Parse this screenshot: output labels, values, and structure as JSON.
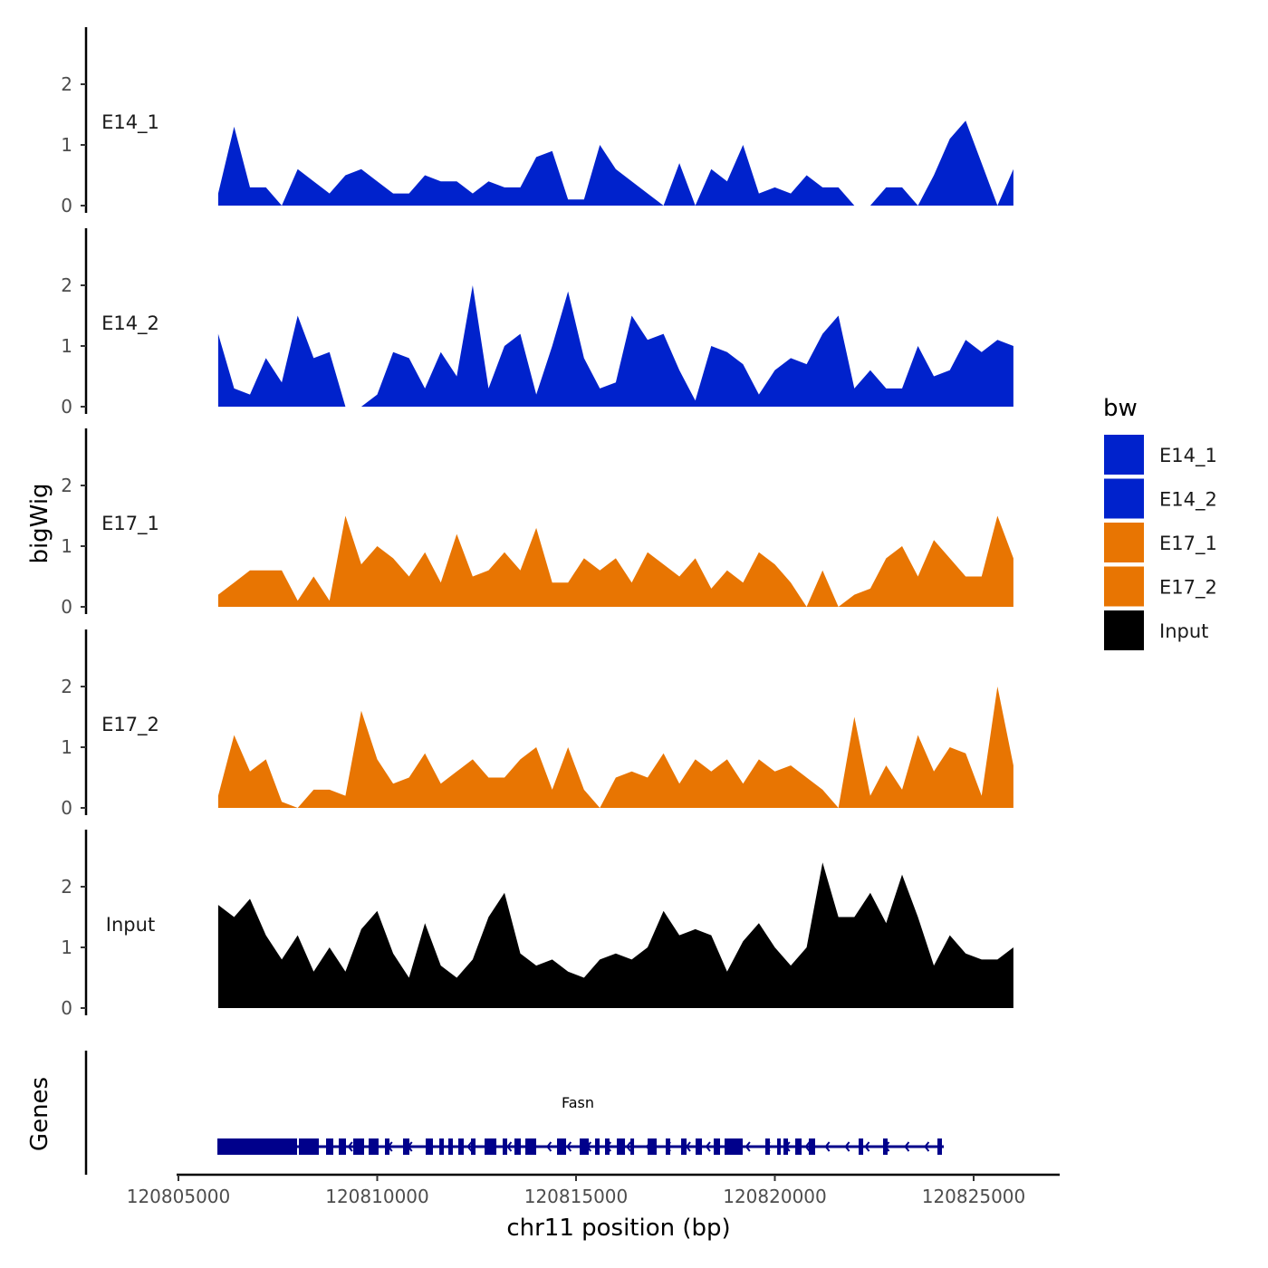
{
  "chart_data": {
    "type": "area",
    "xlabel": "chr11 position (bp)",
    "ylabel": "bigWig",
    "genes_label": "Genes",
    "x_ticks": [
      120805000,
      120810000,
      120815000,
      120820000,
      120825000
    ],
    "x_tick_labels": [
      "120805000",
      "120810000",
      "120815000",
      "120820000",
      "120825000"
    ],
    "xlim": [
      120805000,
      120827200
    ],
    "y_ticks": [
      0,
      1,
      2
    ],
    "y_tick_labels": [
      "0",
      "1",
      "2"
    ],
    "ylim": [
      0,
      2.9
    ],
    "x_start": 120806000,
    "x_step": 400,
    "legend": {
      "title": "bw",
      "position": "right",
      "entries": [
        "E14_1",
        "E14_2",
        "E17_1",
        "E17_2",
        "Input"
      ]
    },
    "series": [
      {
        "name": "E14_1",
        "color": "#0022CC",
        "values": [
          0.2,
          1.3,
          0.3,
          0.3,
          0,
          0.6,
          0.4,
          0.2,
          0.5,
          0.6,
          0.4,
          0.2,
          0.2,
          0.5,
          0.4,
          0.4,
          0.2,
          0.4,
          0.3,
          0.3,
          0.8,
          0.9,
          0.1,
          0.1,
          1.0,
          0.6,
          0.4,
          0.2,
          0,
          0.7,
          0,
          0.6,
          0.4,
          1.0,
          0.2,
          0.3,
          0.2,
          0.5,
          0.3,
          0.3,
          0,
          0,
          0.3,
          0.3,
          0,
          0.5,
          1.1,
          1.4,
          0.7,
          0,
          0.6
        ]
      },
      {
        "name": "E14_2",
        "color": "#0022CC",
        "values": [
          1.2,
          0.3,
          0.2,
          0.8,
          0.4,
          1.5,
          0.8,
          0.9,
          0,
          0,
          0.2,
          0.9,
          0.8,
          0.3,
          0.9,
          0.5,
          2.0,
          0.3,
          1.0,
          1.2,
          0.2,
          1.0,
          1.9,
          0.8,
          0.3,
          0.4,
          1.5,
          1.1,
          1.2,
          0.6,
          0.1,
          1.0,
          0.9,
          0.7,
          0.2,
          0.6,
          0.8,
          0.7,
          1.2,
          1.5,
          0.3,
          0.6,
          0.3,
          0.3,
          1.0,
          0.5,
          0.6,
          1.1,
          0.9,
          1.1,
          1.0
        ]
      },
      {
        "name": "E17_1",
        "color": "#E87502",
        "values": [
          0.2,
          0.4,
          0.6,
          0.6,
          0.6,
          0.1,
          0.5,
          0.1,
          1.5,
          0.7,
          1.0,
          0.8,
          0.5,
          0.9,
          0.4,
          1.2,
          0.5,
          0.6,
          0.9,
          0.6,
          1.3,
          0.4,
          0.4,
          0.8,
          0.6,
          0.8,
          0.4,
          0.9,
          0.7,
          0.5,
          0.8,
          0.3,
          0.6,
          0.4,
          0.9,
          0.7,
          0.4,
          0,
          0.6,
          0,
          0.2,
          0.3,
          0.8,
          1.0,
          0.5,
          1.1,
          0.8,
          0.5,
          0.5,
          1.5,
          0.8
        ]
      },
      {
        "name": "E17_2",
        "color": "#E87502",
        "values": [
          0.2,
          1.2,
          0.6,
          0.8,
          0.1,
          0,
          0.3,
          0.3,
          0.2,
          1.6,
          0.8,
          0.4,
          0.5,
          0.9,
          0.4,
          0.6,
          0.8,
          0.5,
          0.5,
          0.8,
          1.0,
          0.3,
          1.0,
          0.3,
          0,
          0.5,
          0.6,
          0.5,
          0.9,
          0.4,
          0.8,
          0.6,
          0.8,
          0.4,
          0.8,
          0.6,
          0.7,
          0.5,
          0.3,
          0,
          1.5,
          0.2,
          0.7,
          0.3,
          1.2,
          0.6,
          1.0,
          0.9,
          0.2,
          2.0,
          0.7
        ]
      },
      {
        "name": "Input",
        "color": "#000000",
        "values": [
          1.7,
          1.5,
          1.8,
          1.2,
          0.8,
          1.2,
          0.6,
          1.0,
          0.6,
          1.3,
          1.6,
          0.9,
          0.5,
          1.4,
          0.7,
          0.5,
          0.8,
          1.5,
          1.9,
          0.9,
          0.7,
          0.8,
          0.6,
          0.5,
          0.8,
          0.9,
          0.8,
          1.0,
          1.6,
          1.2,
          1.3,
          1.2,
          0.6,
          1.1,
          1.4,
          1.0,
          0.7,
          1.0,
          2.4,
          1.5,
          1.5,
          1.9,
          1.4,
          2.2,
          1.5,
          0.7,
          1.2,
          0.9,
          0.8,
          0.8,
          1.0
        ]
      }
    ],
    "gene": {
      "name": "Fasn",
      "color": "#00008B",
      "strand": "-",
      "start": 120805980,
      "end": 120824250,
      "exons": [
        [
          120805980,
          120807984
        ],
        [
          120808030,
          120808531
        ],
        [
          120808713,
          120808895
        ],
        [
          120809032,
          120809214
        ],
        [
          120809397,
          120809670
        ],
        [
          120809784,
          120810034
        ],
        [
          120810194,
          120810308
        ],
        [
          120810649,
          120810809
        ],
        [
          120811219,
          120811401
        ],
        [
          120811561,
          120811675
        ],
        [
          120811788,
          120811902
        ],
        [
          120812039,
          120812176
        ],
        [
          120812358,
          120812472
        ],
        [
          120812700,
          120812996
        ],
        [
          120813155,
          120813269
        ],
        [
          120813451,
          120813611
        ],
        [
          120813725,
          120813998
        ],
        [
          120814522,
          120814750
        ],
        [
          120815092,
          120815320
        ],
        [
          120815479,
          120815593
        ],
        [
          120815729,
          120815843
        ],
        [
          120816026,
          120816231
        ],
        [
          120816368,
          120816459
        ],
        [
          120816800,
          120817028
        ],
        [
          120817256,
          120817370
        ],
        [
          120817643,
          120817780
        ],
        [
          120818007,
          120818167
        ],
        [
          120818463,
          120818622
        ],
        [
          120818736,
          120819192
        ],
        [
          120819761,
          120819875
        ],
        [
          120820058,
          120820149
        ],
        [
          120820217,
          120820331
        ],
        [
          120820513,
          120820673
        ],
        [
          120820855,
          120821014
        ],
        [
          120822108,
          120822222
        ],
        [
          120822722,
          120822836
        ],
        [
          120824089,
          120824203
        ]
      ]
    }
  }
}
